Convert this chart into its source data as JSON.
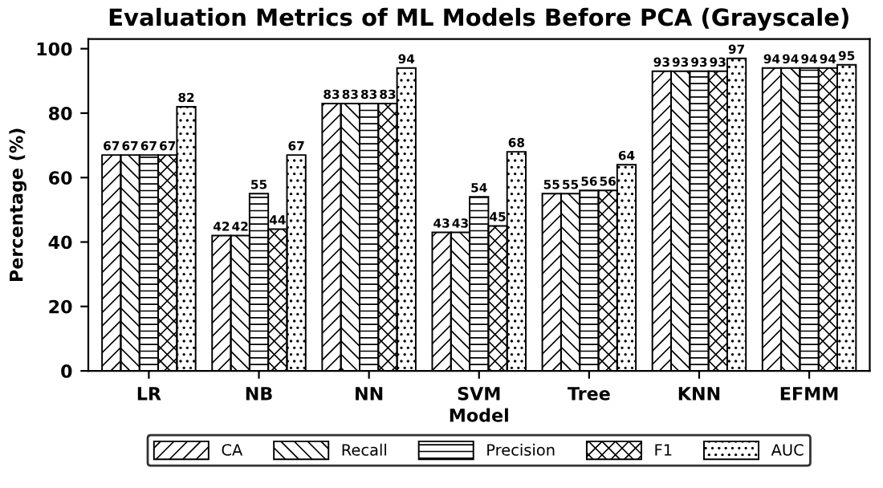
{
  "chart_data": {
    "type": "bar",
    "title": "Evaluation Metrics of ML Models Before PCA (Grayscale)",
    "xlabel": "Model",
    "ylabel": "Percentage (%)",
    "categories": [
      "LR",
      "NB",
      "NN",
      "SVM",
      "Tree",
      "KNN",
      "EFMM"
    ],
    "series": [
      {
        "name": "CA",
        "color": "#000000",
        "values": [
          67,
          42,
          83,
          43,
          55,
          93,
          94
        ]
      },
      {
        "name": "Recall",
        "color": "#000000",
        "values": [
          67,
          42,
          83,
          43,
          55,
          93,
          94
        ]
      },
      {
        "name": "Precision",
        "color": "#000000",
        "values": [
          67,
          55,
          83,
          54,
          56,
          93,
          94
        ]
      },
      {
        "name": "F1",
        "color": "#000000",
        "values": [
          67,
          44,
          83,
          45,
          56,
          93,
          94
        ]
      },
      {
        "name": "AUC",
        "color": "#000000",
        "values": [
          82,
          67,
          94,
          68,
          64,
          97,
          95
        ]
      }
    ],
    "ylim": [
      0,
      103
    ],
    "yticks": [
      0,
      20,
      40,
      60,
      80,
      100
    ],
    "data_labels": true,
    "grid": false,
    "legend": "bottom"
  }
}
